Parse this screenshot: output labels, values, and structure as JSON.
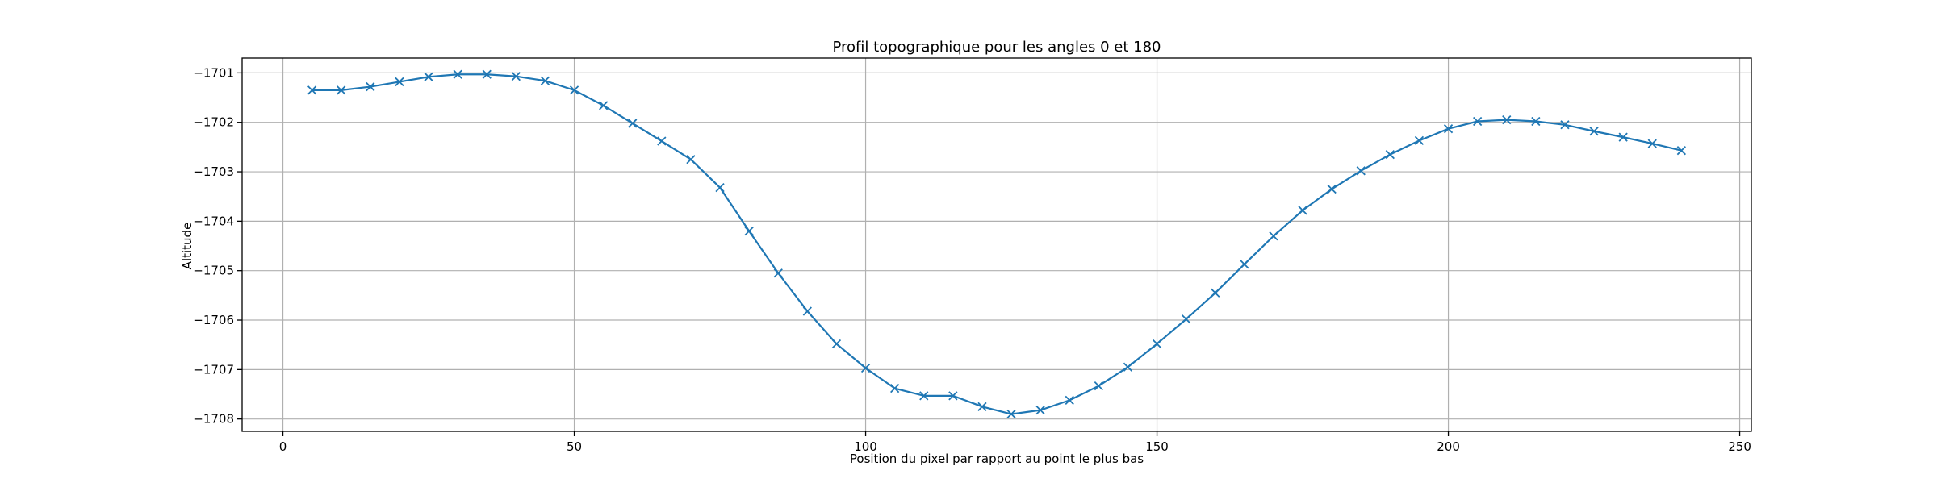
{
  "chart_data": {
    "type": "line",
    "title": "Profil topographique pour les angles 0 et 180",
    "xlabel": "Position du pixel par rapport au point le plus bas",
    "ylabel": "Altitude",
    "xlim": [
      -7,
      252
    ],
    "ylim": [
      -1708.25,
      -1700.7
    ],
    "xticks": [
      0,
      50,
      100,
      150,
      200,
      250
    ],
    "yticks": [
      -1708,
      -1707,
      -1706,
      -1705,
      -1704,
      -1703,
      -1702,
      -1701
    ],
    "grid": true,
    "marker": "x",
    "line_color": "#1f77b4",
    "series": [
      {
        "x": [
          5,
          10,
          15,
          20,
          25,
          30,
          35,
          40,
          45,
          50,
          55,
          60,
          65,
          70,
          75,
          80,
          85,
          90,
          95,
          100,
          105,
          110,
          115,
          120,
          125,
          130,
          135,
          140,
          145,
          150,
          155,
          160,
          165,
          170,
          175,
          180,
          185,
          190,
          195,
          200,
          205,
          210,
          215,
          220,
          225,
          230,
          235,
          240
        ],
        "y": [
          -1701.35,
          -1701.35,
          -1701.28,
          -1701.18,
          -1701.08,
          -1701.03,
          -1701.03,
          -1701.07,
          -1701.16,
          -1701.35,
          -1701.66,
          -1702.02,
          -1702.38,
          -1702.75,
          -1703.32,
          -1704.2,
          -1705.05,
          -1705.82,
          -1706.48,
          -1706.97,
          -1707.38,
          -1707.53,
          -1707.53,
          -1707.75,
          -1707.9,
          -1707.82,
          -1707.62,
          -1707.33,
          -1706.95,
          -1706.48,
          -1705.98,
          -1705.45,
          -1704.87,
          -1704.3,
          -1703.78,
          -1703.35,
          -1702.98,
          -1702.65,
          -1702.37,
          -1702.13,
          -1701.98,
          -1701.95,
          -1701.98,
          -1702.05,
          -1702.18,
          -1702.3,
          -1702.43,
          -1702.57
        ]
      }
    ]
  }
}
